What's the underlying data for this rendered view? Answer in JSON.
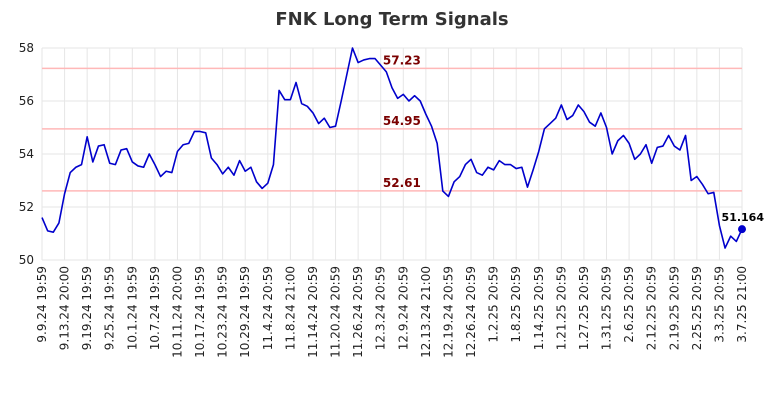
{
  "chart_data": {
    "type": "line",
    "title": "FNK Long Term Signals",
    "xlabel": "",
    "ylabel": "",
    "ylim": [
      50,
      58
    ],
    "yticks": [
      50,
      52,
      54,
      56,
      58
    ],
    "grid": true,
    "x_tick_labels": [
      "9.9.24 19:59",
      "9.13.24 20:00",
      "9.19.24 19:59",
      "9.25.24 19:59",
      "10.1.24 19:59",
      "10.7.24 19:59",
      "10.11.24 20:00",
      "10.17.24 19:59",
      "10.23.24 19:59",
      "10.29.24 19:59",
      "11.4.24 20:59",
      "11.8.24 21:00",
      "11.14.24 20:59",
      "11.20.24 20:59",
      "11.26.24 20:59",
      "12.3.24 20:59",
      "12.9.24 20:59",
      "12.13.24 21:00",
      "12.19.24 20:59",
      "12.26.24 20:59",
      "1.2.25 20:59",
      "1.8.25 20:59",
      "1.14.25 20:59",
      "1.21.25 20:59",
      "1.27.25 20:59",
      "1.31.25 20:59",
      "2.6.25 20:59",
      "2.12.25 20:59",
      "2.19.25 20:59",
      "2.25.25 20:59",
      "3.3.25 20:59",
      "3.7.25 21:00"
    ],
    "levels": [
      {
        "value": 57.23,
        "label": "57.23"
      },
      {
        "value": 54.95,
        "label": "54.95"
      },
      {
        "value": 52.61,
        "label": "52.61"
      }
    ],
    "series": [
      {
        "values": [
          51.6,
          51.1,
          51.05,
          51.4,
          52.5,
          53.3,
          53.5,
          53.6,
          54.65,
          53.7,
          54.3,
          54.35,
          53.65,
          53.6,
          54.15,
          54.2,
          53.7,
          53.55,
          53.5,
          54.0,
          53.6,
          53.15,
          53.35,
          53.3,
          54.1,
          54.35,
          54.4,
          54.85,
          54.85,
          54.8,
          53.85,
          53.6,
          53.25,
          53.5,
          53.2,
          53.75,
          53.35,
          53.5,
          52.95,
          52.7,
          52.9,
          53.6,
          56.4,
          56.05,
          56.05,
          56.7,
          55.9,
          55.8,
          55.55,
          55.15,
          55.35,
          55.0,
          55.05,
          56.0,
          57.0,
          58.0,
          57.45,
          57.55,
          57.6,
          57.6,
          57.35,
          57.1,
          56.5,
          56.1,
          56.25,
          56.0,
          56.2,
          56.0,
          55.5,
          55.05,
          54.4,
          52.6,
          52.4,
          52.95,
          53.15,
          53.6,
          53.8,
          53.3,
          53.2,
          53.5,
          53.4,
          53.75,
          53.6,
          53.6,
          53.45,
          53.5,
          52.75,
          53.4,
          54.1,
          54.95,
          55.15,
          55.35,
          55.85,
          55.3,
          55.45,
          55.85,
          55.6,
          55.2,
          55.05,
          55.55,
          55.0,
          54.0,
          54.5,
          54.7,
          54.4,
          53.8,
          54.0,
          54.35,
          53.65,
          54.25,
          54.3,
          54.7,
          54.3,
          54.15,
          54.7,
          53.0,
          53.15,
          52.85,
          52.5,
          52.55,
          51.3,
          50.45,
          50.9,
          50.7,
          51.164
        ]
      }
    ],
    "last_value_label": "51.164",
    "colors": {
      "line": "#0000cc",
      "level_line": "#ffb8b8",
      "level_text": "#7a0000",
      "grid": "#e6e6e6",
      "marker": "#0000cc"
    }
  }
}
